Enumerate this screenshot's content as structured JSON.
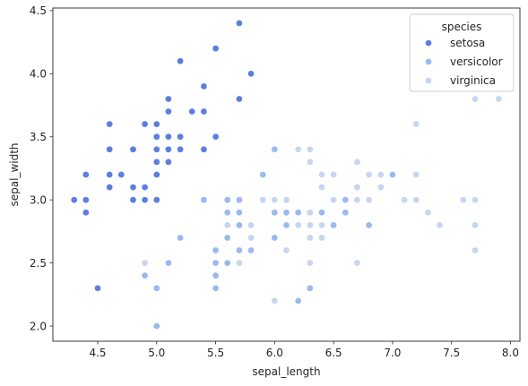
{
  "chart_data": {
    "type": "scatter",
    "title": "",
    "xlabel": "sepal_length",
    "ylabel": "sepal_width",
    "xlim": [
      4.12,
      8.08
    ],
    "ylim": [
      1.88,
      4.52
    ],
    "xticks": [
      4.5,
      5.0,
      5.5,
      6.0,
      6.5,
      7.0,
      7.5,
      8.0
    ],
    "xtick_labels": [
      "4.5",
      "5.0",
      "5.5",
      "6.0",
      "6.5",
      "7.0",
      "7.5",
      "8.0"
    ],
    "yticks": [
      2.0,
      2.5,
      3.0,
      3.5,
      4.0,
      4.5
    ],
    "ytick_labels": [
      "2.0",
      "2.5",
      "3.0",
      "3.5",
      "4.0",
      "4.5"
    ],
    "grid": false,
    "legend": {
      "title": "species",
      "placement": "top-right"
    },
    "series": [
      {
        "name": "setosa",
        "color": "#5b7fe0",
        "points": [
          [
            5.1,
            3.5
          ],
          [
            4.9,
            3.0
          ],
          [
            4.7,
            3.2
          ],
          [
            4.6,
            3.1
          ],
          [
            5.0,
            3.6
          ],
          [
            5.4,
            3.9
          ],
          [
            4.6,
            3.4
          ],
          [
            5.0,
            3.4
          ],
          [
            4.4,
            2.9
          ],
          [
            4.9,
            3.1
          ],
          [
            5.4,
            3.7
          ],
          [
            4.8,
            3.4
          ],
          [
            4.8,
            3.0
          ],
          [
            4.3,
            3.0
          ],
          [
            5.8,
            4.0
          ],
          [
            5.7,
            4.4
          ],
          [
            5.4,
            3.9
          ],
          [
            5.1,
            3.5
          ],
          [
            5.7,
            3.8
          ],
          [
            5.1,
            3.8
          ],
          [
            5.4,
            3.4
          ],
          [
            5.1,
            3.7
          ],
          [
            4.6,
            3.6
          ],
          [
            5.1,
            3.3
          ],
          [
            4.8,
            3.4
          ],
          [
            5.0,
            3.0
          ],
          [
            5.0,
            3.4
          ],
          [
            5.2,
            3.5
          ],
          [
            5.2,
            3.4
          ],
          [
            4.7,
            3.2
          ],
          [
            4.8,
            3.1
          ],
          [
            5.4,
            3.4
          ],
          [
            5.2,
            4.1
          ],
          [
            5.5,
            4.2
          ],
          [
            4.9,
            3.1
          ],
          [
            5.0,
            3.2
          ],
          [
            5.5,
            3.5
          ],
          [
            4.9,
            3.6
          ],
          [
            4.4,
            3.0
          ],
          [
            5.1,
            3.4
          ],
          [
            5.0,
            3.5
          ],
          [
            4.5,
            2.3
          ],
          [
            4.4,
            3.2
          ],
          [
            5.0,
            3.5
          ],
          [
            5.1,
            3.8
          ],
          [
            4.8,
            3.0
          ],
          [
            5.1,
            3.8
          ],
          [
            4.6,
            3.2
          ],
          [
            5.3,
            3.7
          ],
          [
            5.0,
            3.3
          ]
        ]
      },
      {
        "name": "versicolor",
        "color": "#9bb9f0",
        "points": [
          [
            7.0,
            3.2
          ],
          [
            6.4,
            3.2
          ],
          [
            6.9,
            3.1
          ],
          [
            5.5,
            2.3
          ],
          [
            6.5,
            2.8
          ],
          [
            5.7,
            2.8
          ],
          [
            6.3,
            3.3
          ],
          [
            4.9,
            2.4
          ],
          [
            6.6,
            2.9
          ],
          [
            5.2,
            2.7
          ],
          [
            5.0,
            2.0
          ],
          [
            5.9,
            3.0
          ],
          [
            6.0,
            2.2
          ],
          [
            6.1,
            2.9
          ],
          [
            5.6,
            2.9
          ],
          [
            6.7,
            3.1
          ],
          [
            5.6,
            3.0
          ],
          [
            5.8,
            2.7
          ],
          [
            6.2,
            2.2
          ],
          [
            5.6,
            2.5
          ],
          [
            5.9,
            3.2
          ],
          [
            6.1,
            2.8
          ],
          [
            6.3,
            2.5
          ],
          [
            6.1,
            2.8
          ],
          [
            6.4,
            2.9
          ],
          [
            6.6,
            3.0
          ],
          [
            6.8,
            2.8
          ],
          [
            6.7,
            3.0
          ],
          [
            6.0,
            2.9
          ],
          [
            5.7,
            2.6
          ],
          [
            5.5,
            2.4
          ],
          [
            5.5,
            2.4
          ],
          [
            5.8,
            2.7
          ],
          [
            6.0,
            2.7
          ],
          [
            5.4,
            3.0
          ],
          [
            6.0,
            3.4
          ],
          [
            6.7,
            3.1
          ],
          [
            6.3,
            2.3
          ],
          [
            5.6,
            3.0
          ],
          [
            5.5,
            2.5
          ],
          [
            5.5,
            2.6
          ],
          [
            6.1,
            3.0
          ],
          [
            5.8,
            2.6
          ],
          [
            5.0,
            2.3
          ],
          [
            5.6,
            2.7
          ],
          [
            5.7,
            3.0
          ],
          [
            5.7,
            2.9
          ],
          [
            6.2,
            2.9
          ],
          [
            5.1,
            2.5
          ],
          [
            5.7,
            2.8
          ]
        ]
      },
      {
        "name": "virginica",
        "color": "#c6d6ee",
        "points": [
          [
            6.3,
            3.3
          ],
          [
            5.8,
            2.7
          ],
          [
            7.1,
            3.0
          ],
          [
            6.3,
            2.9
          ],
          [
            6.5,
            3.0
          ],
          [
            7.6,
            3.0
          ],
          [
            4.9,
            2.5
          ],
          [
            7.3,
            2.9
          ],
          [
            6.7,
            2.5
          ],
          [
            7.2,
            3.6
          ],
          [
            6.5,
            3.2
          ],
          [
            6.4,
            2.7
          ],
          [
            6.8,
            3.0
          ],
          [
            5.7,
            2.5
          ],
          [
            5.8,
            2.8
          ],
          [
            6.4,
            3.2
          ],
          [
            6.5,
            3.0
          ],
          [
            7.7,
            3.8
          ],
          [
            7.7,
            2.6
          ],
          [
            6.0,
            2.2
          ],
          [
            6.9,
            3.2
          ],
          [
            5.6,
            2.8
          ],
          [
            7.7,
            2.8
          ],
          [
            6.3,
            2.7
          ],
          [
            6.7,
            3.3
          ],
          [
            7.2,
            3.2
          ],
          [
            6.2,
            2.8
          ],
          [
            6.1,
            3.0
          ],
          [
            6.4,
            2.8
          ],
          [
            7.2,
            3.0
          ],
          [
            7.4,
            2.8
          ],
          [
            7.9,
            3.8
          ],
          [
            6.4,
            2.8
          ],
          [
            6.3,
            2.8
          ],
          [
            6.1,
            2.6
          ],
          [
            7.7,
            3.0
          ],
          [
            6.3,
            3.4
          ],
          [
            6.4,
            3.1
          ],
          [
            6.0,
            3.0
          ],
          [
            6.9,
            3.1
          ],
          [
            6.7,
            3.1
          ],
          [
            6.9,
            3.1
          ],
          [
            5.8,
            2.7
          ],
          [
            6.8,
            3.2
          ],
          [
            6.7,
            3.3
          ],
          [
            6.7,
            3.0
          ],
          [
            6.3,
            2.5
          ],
          [
            6.5,
            3.0
          ],
          [
            6.2,
            3.4
          ],
          [
            5.9,
            3.0
          ]
        ]
      }
    ]
  }
}
